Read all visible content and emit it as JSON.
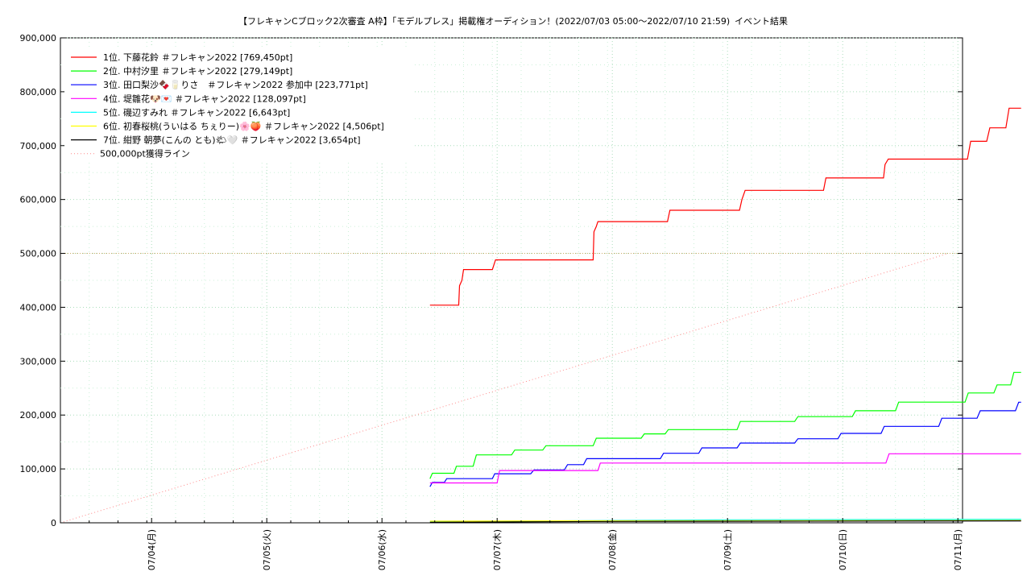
{
  "chart_data": {
    "type": "line",
    "title": "【フレキャンCブロック2次審査 A枠】「モデルプレス」掲載権オーディション！(2022/07/03 05:00〜2022/07/10 21:59)",
    "subtitle": "イベント結果",
    "xlabel": "",
    "ylabel": "",
    "x_ticks": [
      "07/04(月)",
      "07/05(火)",
      "07/06(水)",
      "07/07(木)",
      "07/08(金)",
      "07/09(土)",
      "07/10(日)",
      "07/11(月)"
    ],
    "ylim": [
      0,
      900000
    ],
    "y_ticks": [
      "0",
      "100,000",
      "200,000",
      "300,000",
      "400,000",
      "500,000",
      "600,000",
      "700,000",
      "800,000",
      "900,000"
    ],
    "grid": true,
    "legend_position": "top-left",
    "series": [
      {
        "name": "1位. 下藤花鈴 ＃フレキャン2022 [769,450pt]",
        "color": "#ff0000",
        "points": [
          [
            "07/06 10:00",
            404000
          ],
          [
            "07/06 16:00",
            404000
          ],
          [
            "07/06 16:10",
            440000
          ],
          [
            "07/06 16:40",
            450000
          ],
          [
            "07/06 17:00",
            470000
          ],
          [
            "07/06 23:00",
            470000
          ],
          [
            "07/06 23:40",
            488000
          ],
          [
            "07/07 20:00",
            488000
          ],
          [
            "07/07 20:10",
            540000
          ],
          [
            "07/07 20:40",
            550000
          ],
          [
            "07/07 21:00",
            559000
          ],
          [
            "07/08 11:30",
            559000
          ],
          [
            "07/08 12:00",
            580000
          ],
          [
            "07/09 02:30",
            580000
          ],
          [
            "07/09 03:00",
            600000
          ],
          [
            "07/09 03:40",
            617000
          ],
          [
            "07/09 20:00",
            617000
          ],
          [
            "07/09 20:30",
            640000
          ],
          [
            "07/10 08:30",
            640000
          ],
          [
            "07/10 08:50",
            665000
          ],
          [
            "07/10 09:30",
            675000
          ],
          [
            "07/11 02:00",
            675000
          ],
          [
            "07/11 02:40",
            708000
          ],
          [
            "07/11 06:00",
            708000
          ],
          [
            "07/11 06:40",
            733000
          ],
          [
            "07/11 10:00",
            733000
          ],
          [
            "07/11 10:40",
            769450
          ],
          [
            "07/11 13:10",
            769450
          ]
        ]
      },
      {
        "name": "2位. 中村汐里 ＃フレキャン2022 [279,149pt]",
        "color": "#00ff00",
        "points": [
          [
            "07/06 10:00",
            82000
          ],
          [
            "07/06 10:30",
            92000
          ],
          [
            "07/06 15:00",
            92000
          ],
          [
            "07/06 15:30",
            105000
          ],
          [
            "07/06 19:00",
            105000
          ],
          [
            "07/06 19:40",
            126000
          ],
          [
            "07/07 03:00",
            126000
          ],
          [
            "07/07 03:40",
            135000
          ],
          [
            "07/07 09:30",
            135000
          ],
          [
            "07/07 10:10",
            143000
          ],
          [
            "07/07 20:00",
            143000
          ],
          [
            "07/07 20:40",
            157000
          ],
          [
            "07/08 06:00",
            157000
          ],
          [
            "07/08 06:40",
            165000
          ],
          [
            "07/08 11:00",
            165000
          ],
          [
            "07/08 11:40",
            173000
          ],
          [
            "07/09 02:00",
            173000
          ],
          [
            "07/09 02:40",
            188000
          ],
          [
            "07/09 14:00",
            188000
          ],
          [
            "07/09 14:40",
            197000
          ],
          [
            "07/10 02:00",
            197000
          ],
          [
            "07/10 02:40",
            208000
          ],
          [
            "07/10 11:00",
            208000
          ],
          [
            "07/10 11:40",
            224000
          ],
          [
            "07/11 01:30",
            224000
          ],
          [
            "07/11 02:10",
            241000
          ],
          [
            "07/11 07:30",
            241000
          ],
          [
            "07/11 08:10",
            256000
          ],
          [
            "07/11 11:00",
            256000
          ],
          [
            "07/11 11:40",
            279149
          ],
          [
            "07/11 13:10",
            279149
          ]
        ]
      },
      {
        "name": "3位. 田口梨沙🍫🥛りさ　＃フレキャン2022 参加中 [223,771pt]",
        "color": "#0000ff",
        "points": [
          [
            "07/06 10:00",
            67000
          ],
          [
            "07/06 10:30",
            75000
          ],
          [
            "07/06 13:00",
            75000
          ],
          [
            "07/06 13:30",
            82000
          ],
          [
            "07/06 23:00",
            82000
          ],
          [
            "07/06 23:30",
            91000
          ],
          [
            "07/07 07:00",
            91000
          ],
          [
            "07/07 07:40",
            98000
          ],
          [
            "07/07 14:00",
            98000
          ],
          [
            "07/07 14:40",
            108000
          ],
          [
            "07/07 18:00",
            108000
          ],
          [
            "07/07 18:40",
            119000
          ],
          [
            "07/08 10:00",
            119000
          ],
          [
            "07/08 10:40",
            129000
          ],
          [
            "07/08 18:00",
            129000
          ],
          [
            "07/08 18:40",
            139000
          ],
          [
            "07/09 02:00",
            139000
          ],
          [
            "07/09 02:40",
            148000
          ],
          [
            "07/09 14:00",
            148000
          ],
          [
            "07/09 14:40",
            156000
          ],
          [
            "07/09 23:00",
            156000
          ],
          [
            "07/09 23:40",
            166000
          ],
          [
            "07/10 08:00",
            166000
          ],
          [
            "07/10 08:40",
            179000
          ],
          [
            "07/10 20:00",
            179000
          ],
          [
            "07/10 20:40",
            194000
          ],
          [
            "07/11 04:00",
            194000
          ],
          [
            "07/11 04:40",
            208000
          ],
          [
            "07/11 12:00",
            208000
          ],
          [
            "07/11 12:40",
            223771
          ],
          [
            "07/11 13:10",
            223771
          ]
        ]
      },
      {
        "name": "4位. 堤雛花🐶💌 ＃フレキャン2022 [128,097pt]",
        "color": "#ff00ff",
        "points": [
          [
            "07/06 10:00",
            74000
          ],
          [
            "07/07 00:00",
            74000
          ],
          [
            "07/07 00:30",
            97000
          ],
          [
            "07/07 21:00",
            97000
          ],
          [
            "07/07 21:30",
            111000
          ],
          [
            "07/10 09:00",
            111000
          ],
          [
            "07/10 09:40",
            128097
          ],
          [
            "07/11 13:10",
            128097
          ]
        ]
      },
      {
        "name": "5位. 磯辺すみれ ＃フレキャン2022 [6,643pt]",
        "color": "#00ffff",
        "points": [
          [
            "07/06 10:00",
            2000
          ],
          [
            "07/07 20:00",
            4000
          ],
          [
            "07/09 00:00",
            5500
          ],
          [
            "07/11 13:10",
            6643
          ]
        ]
      },
      {
        "name": "6位. 初春桜桃(ういはる ちぇりー)🌸🍑 ＃フレキャン2022 [4,506pt]",
        "color": "#ffff00",
        "points": [
          [
            "07/06 10:00",
            3000
          ],
          [
            "07/08 00:00",
            3800
          ],
          [
            "07/11 13:10",
            4506
          ]
        ]
      },
      {
        "name": "7位. 紺野 朝夢(こんの とも)🌤🤍 ＃フレキャン2022 [3,654pt]",
        "color": "#000000",
        "points": [
          [
            "07/06 10:00",
            1000
          ],
          [
            "07/08 00:00",
            2500
          ],
          [
            "07/11 13:10",
            3654
          ]
        ]
      },
      {
        "name": "500,000pt獲得ライン",
        "color": "#ff8888",
        "dotted": true,
        "points": [
          [
            "07/03 05:00",
            0
          ],
          [
            "07/10 21:59",
            500000
          ]
        ]
      }
    ],
    "reference_line": {
      "value": 500000,
      "color": "#ccaa66"
    }
  }
}
